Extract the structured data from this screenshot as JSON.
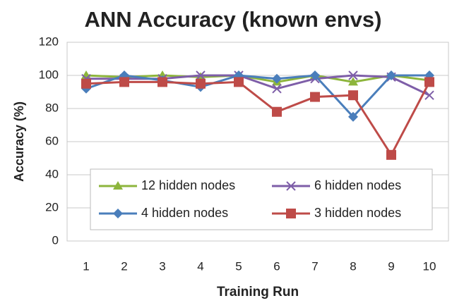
{
  "chart_data": {
    "type": "line",
    "title": "ANN Accuracy (known envs)",
    "x_label": "Training Run",
    "y_label": "Accuracy (%)",
    "categories": [
      "1",
      "2",
      "3",
      "4",
      "5",
      "6",
      "7",
      "8",
      "9",
      "10"
    ],
    "ylim": [
      0,
      120
    ],
    "yticks": [
      0,
      20,
      40,
      60,
      80,
      100,
      120
    ],
    "grid": true,
    "series": [
      {
        "name": "12 hidden nodes",
        "color": "#8db53c",
        "marker": "triangle",
        "values": [
          100,
          99,
          100,
          99,
          100,
          96,
          100,
          96,
          100,
          97
        ]
      },
      {
        "name": "6 hidden nodes",
        "color": "#7e5ea8",
        "marker": "cross",
        "values": [
          98,
          98,
          98,
          100,
          100,
          92,
          98,
          100,
          99,
          88
        ]
      },
      {
        "name": "4 hidden nodes",
        "color": "#4a7ebb",
        "marker": "diamond",
        "values": [
          92,
          100,
          97,
          93,
          100,
          98,
          100,
          75,
          100,
          100
        ]
      },
      {
        "name": "3 hidden nodes",
        "color": "#be4b48",
        "marker": "square",
        "values": [
          95,
          96,
          96,
          95,
          96,
          78,
          87,
          88,
          52,
          96
        ]
      }
    ]
  }
}
